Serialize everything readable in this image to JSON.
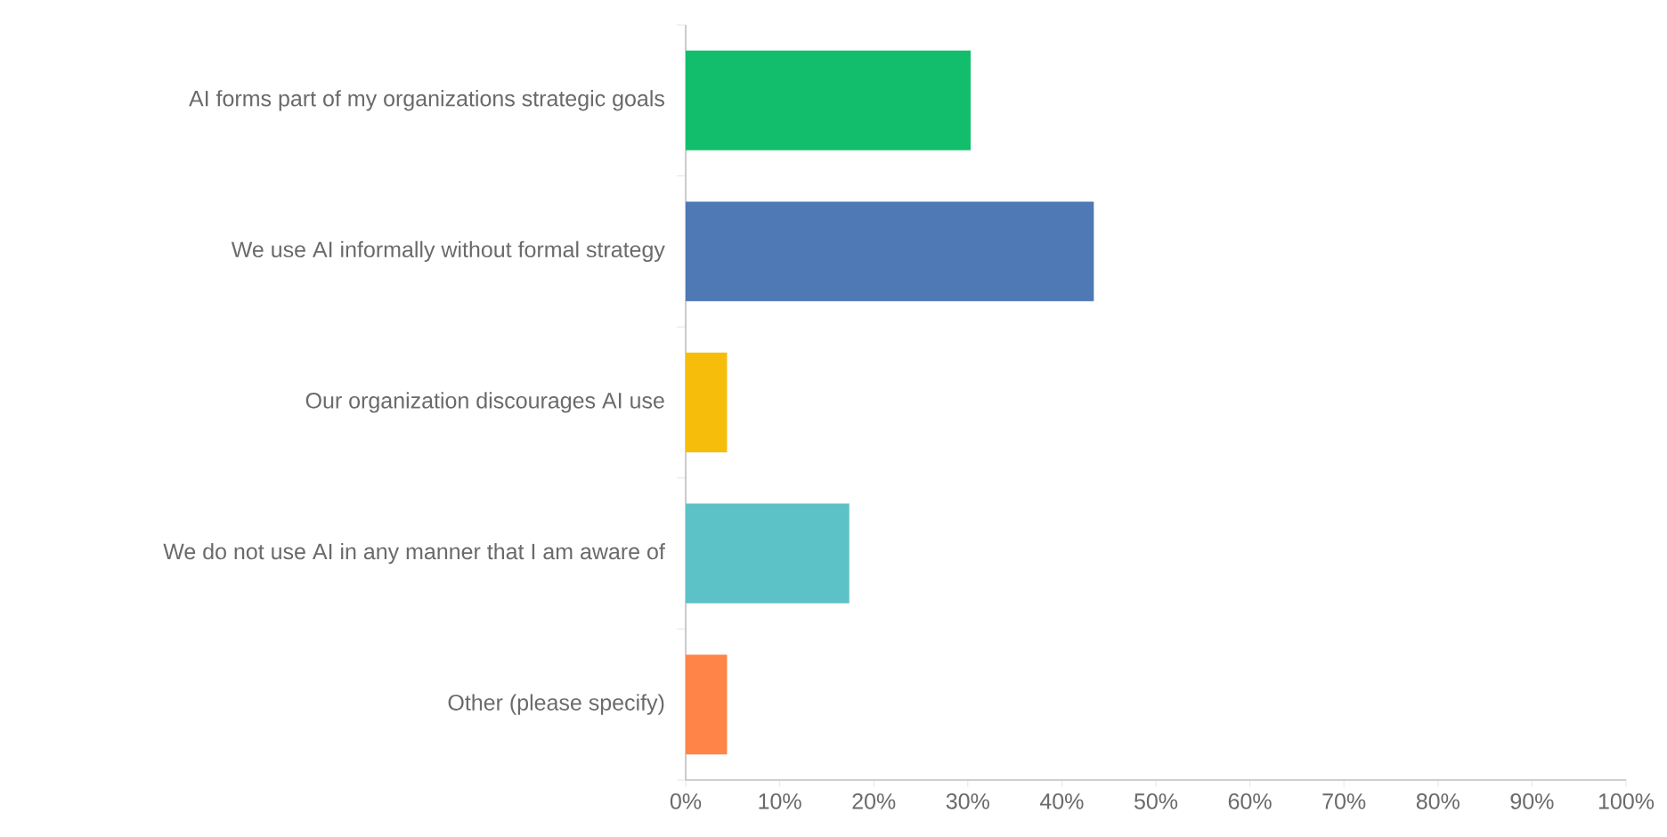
{
  "chart_data": {
    "type": "bar",
    "orientation": "horizontal",
    "categories": [
      "AI forms part of my organizations strategic goals",
      "We use AI informally without formal strategy",
      "Our organization discourages AI use",
      "We do not use AI in any manner that I am aware of",
      "Other (please specify)"
    ],
    "values": [
      30.3,
      43.4,
      4.4,
      17.4,
      4.4
    ],
    "colors": [
      "#12be6b",
      "#4e79b5",
      "#f6bd0b",
      "#5cc2c7",
      "#fe8448"
    ],
    "xlim": [
      0,
      100
    ],
    "xticks": [
      {
        "value": 0,
        "label": "0%"
      },
      {
        "value": 10,
        "label": "10%"
      },
      {
        "value": 20,
        "label": "20%"
      },
      {
        "value": 30,
        "label": "30%"
      },
      {
        "value": 40,
        "label": "40%"
      },
      {
        "value": 50,
        "label": "50%"
      },
      {
        "value": 60,
        "label": "60%"
      },
      {
        "value": 70,
        "label": "70%"
      },
      {
        "value": 80,
        "label": "80%"
      },
      {
        "value": 90,
        "label": "90%"
      },
      {
        "value": 100,
        "label": "100%"
      }
    ]
  }
}
